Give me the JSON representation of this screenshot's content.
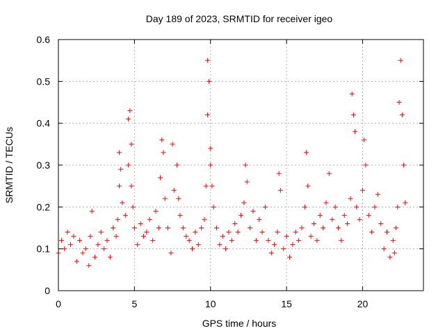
{
  "chart_data": {
    "type": "scatter",
    "title": "Day 189 of 2023, SRMTID for receiver igeo",
    "xlabel": "GPS time / hours",
    "ylabel": "SRMTID / TECUs",
    "xlim": [
      0,
      24
    ],
    "ylim": [
      0,
      0.6
    ],
    "xticks": [
      0,
      5,
      10,
      15,
      20
    ],
    "xtick_labels": [
      "0",
      "5",
      "10",
      "15",
      "20"
    ],
    "yticks": [
      0,
      0.1,
      0.2,
      0.3,
      0.4,
      0.5,
      0.6
    ],
    "ytick_labels": [
      "0",
      "0.1",
      "0.2",
      "0.3",
      "0.4",
      "0.5",
      "0.6"
    ],
    "grid": true,
    "marker": "+",
    "color": "#ff0000",
    "series": [
      {
        "name": "SRMTID",
        "x": [
          0.0,
          0.2,
          0.4,
          0.6,
          0.8,
          1.0,
          1.2,
          1.4,
          1.6,
          1.8,
          2.0,
          2.1,
          2.2,
          2.4,
          2.6,
          2.8,
          3.0,
          3.2,
          3.4,
          3.6,
          3.8,
          3.9,
          4.0,
          4.0,
          4.1,
          4.2,
          4.4,
          4.6,
          4.6,
          4.7,
          4.8,
          4.8,
          4.9,
          5.0,
          5.2,
          5.4,
          5.6,
          5.8,
          6.0,
          6.2,
          6.4,
          6.6,
          6.7,
          6.8,
          6.9,
          7.0,
          7.2,
          7.4,
          7.5,
          7.6,
          7.8,
          7.9,
          8.0,
          8.2,
          8.4,
          8.6,
          8.8,
          9.0,
          9.2,
          9.4,
          9.6,
          9.7,
          9.8,
          9.8,
          9.9,
          10.0,
          10.0,
          10.1,
          10.2,
          10.4,
          10.6,
          10.8,
          11.0,
          11.2,
          11.4,
          11.6,
          11.8,
          12.0,
          12.2,
          12.3,
          12.4,
          12.6,
          12.8,
          13.0,
          13.2,
          13.4,
          13.6,
          13.8,
          14.0,
          14.2,
          14.4,
          14.5,
          14.6,
          14.8,
          15.0,
          15.2,
          15.4,
          15.6,
          15.8,
          16.0,
          16.2,
          16.3,
          16.4,
          16.6,
          16.8,
          17.0,
          17.2,
          17.4,
          17.6,
          17.8,
          18.0,
          18.2,
          18.4,
          18.6,
          18.8,
          19.0,
          19.2,
          19.3,
          19.4,
          19.5,
          19.6,
          19.8,
          20.0,
          20.1,
          20.2,
          20.4,
          20.6,
          20.8,
          21.0,
          21.2,
          21.4,
          21.6,
          21.8,
          22.0,
          22.1,
          22.2,
          22.3,
          22.4,
          22.5,
          22.6,
          22.7,
          22.8
        ],
        "y": [
          0.09,
          0.12,
          0.1,
          0.14,
          0.11,
          0.13,
          0.07,
          0.12,
          0.09,
          0.1,
          0.06,
          0.13,
          0.19,
          0.08,
          0.11,
          0.14,
          0.1,
          0.12,
          0.08,
          0.15,
          0.13,
          0.17,
          0.25,
          0.33,
          0.29,
          0.21,
          0.18,
          0.3,
          0.41,
          0.43,
          0.35,
          0.25,
          0.2,
          0.15,
          0.11,
          0.16,
          0.13,
          0.14,
          0.17,
          0.12,
          0.19,
          0.15,
          0.27,
          0.36,
          0.33,
          0.22,
          0.15,
          0.09,
          0.35,
          0.24,
          0.3,
          0.22,
          0.18,
          0.15,
          0.13,
          0.12,
          0.1,
          0.14,
          0.11,
          0.15,
          0.17,
          0.25,
          0.42,
          0.55,
          0.5,
          0.34,
          0.3,
          0.25,
          0.2,
          0.15,
          0.11,
          0.13,
          0.1,
          0.14,
          0.12,
          0.16,
          0.14,
          0.18,
          0.21,
          0.3,
          0.26,
          0.15,
          0.19,
          0.12,
          0.17,
          0.14,
          0.2,
          0.12,
          0.09,
          0.11,
          0.14,
          0.28,
          0.24,
          0.1,
          0.13,
          0.08,
          0.11,
          0.14,
          0.12,
          0.15,
          0.2,
          0.33,
          0.25,
          0.13,
          0.16,
          0.12,
          0.18,
          0.15,
          0.21,
          0.28,
          0.17,
          0.2,
          0.15,
          0.12,
          0.18,
          0.16,
          0.22,
          0.47,
          0.42,
          0.38,
          0.2,
          0.17,
          0.24,
          0.36,
          0.3,
          0.18,
          0.14,
          0.2,
          0.23,
          0.16,
          0.1,
          0.14,
          0.08,
          0.12,
          0.09,
          0.15,
          0.2,
          0.45,
          0.55,
          0.42,
          0.3,
          0.21
        ]
      }
    ]
  }
}
